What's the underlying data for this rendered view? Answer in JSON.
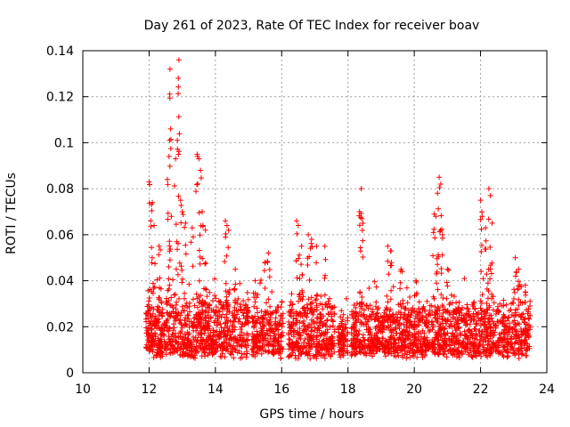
{
  "chart_data": {
    "type": "scatter",
    "title": "Day 261 of 2023, Rate Of TEC Index for receiver boav",
    "xlabel": "GPS time / hours",
    "ylabel": "ROTI / TECUs",
    "xlim": [
      10,
      24
    ],
    "ylim": [
      0,
      0.14
    ],
    "xticks": [
      "10",
      "12",
      "14",
      "16",
      "18",
      "20",
      "22",
      "24"
    ],
    "yticks": [
      "0",
      "0.02",
      "0.04",
      "0.06",
      "0.08",
      "0.1",
      "0.12",
      "0.14"
    ],
    "grid": true,
    "marker": "plus",
    "color": "#ff0000",
    "segments": [
      {
        "start": 11.9,
        "end": 15.0,
        "base": 0.016,
        "spread": 0.022
      },
      {
        "start": 15.1,
        "end": 16.05,
        "base": 0.017,
        "spread": 0.018
      },
      {
        "start": 16.2,
        "end": 17.6,
        "base": 0.018,
        "spread": 0.022
      },
      {
        "start": 17.7,
        "end": 18.0,
        "base": 0.016,
        "spread": 0.014
      },
      {
        "start": 18.1,
        "end": 23.5,
        "base": 0.017,
        "spread": 0.02
      }
    ],
    "peaks": [
      [
        12.0,
        0.083
      ],
      [
        12.05,
        0.066
      ],
      [
        12.1,
        0.074
      ],
      [
        12.15,
        0.064
      ],
      [
        12.3,
        0.055
      ],
      [
        12.55,
        0.084
      ],
      [
        12.6,
        0.094
      ],
      [
        12.62,
        0.101
      ],
      [
        12.65,
        0.106
      ],
      [
        12.63,
        0.132
      ],
      [
        12.8,
        0.093
      ],
      [
        12.85,
        0.101
      ],
      [
        12.88,
        0.128
      ],
      [
        12.9,
        0.136
      ],
      [
        12.95,
        0.075
      ],
      [
        13.0,
        0.07
      ],
      [
        13.1,
        0.065
      ],
      [
        13.3,
        0.063
      ],
      [
        13.45,
        0.095
      ],
      [
        13.5,
        0.093
      ],
      [
        13.55,
        0.088
      ],
      [
        13.6,
        0.07
      ],
      [
        13.7,
        0.062
      ],
      [
        14.3,
        0.066
      ],
      [
        14.35,
        0.064
      ],
      [
        14.4,
        0.062
      ],
      [
        14.6,
        0.045
      ],
      [
        15.2,
        0.04
      ],
      [
        15.5,
        0.048
      ],
      [
        15.6,
        0.052
      ],
      [
        16.45,
        0.066
      ],
      [
        16.5,
        0.064
      ],
      [
        16.6,
        0.055
      ],
      [
        16.8,
        0.06
      ],
      [
        16.9,
        0.058
      ],
      [
        17.05,
        0.055
      ],
      [
        17.3,
        0.055
      ],
      [
        18.35,
        0.07
      ],
      [
        18.4,
        0.08
      ],
      [
        18.45,
        0.065
      ],
      [
        19.2,
        0.055
      ],
      [
        19.3,
        0.053
      ],
      [
        19.6,
        0.045
      ],
      [
        20.05,
        0.04
      ],
      [
        20.6,
        0.069
      ],
      [
        20.65,
        0.068
      ],
      [
        20.7,
        0.078
      ],
      [
        20.75,
        0.085
      ],
      [
        20.8,
        0.082
      ],
      [
        20.85,
        0.06
      ],
      [
        21.0,
        0.045
      ],
      [
        22.0,
        0.075
      ],
      [
        22.05,
        0.068
      ],
      [
        22.15,
        0.063
      ],
      [
        22.25,
        0.08
      ],
      [
        22.3,
        0.077
      ],
      [
        22.35,
        0.065
      ],
      [
        23.05,
        0.05
      ],
      [
        23.15,
        0.045
      ],
      [
        23.35,
        0.038
      ]
    ]
  }
}
